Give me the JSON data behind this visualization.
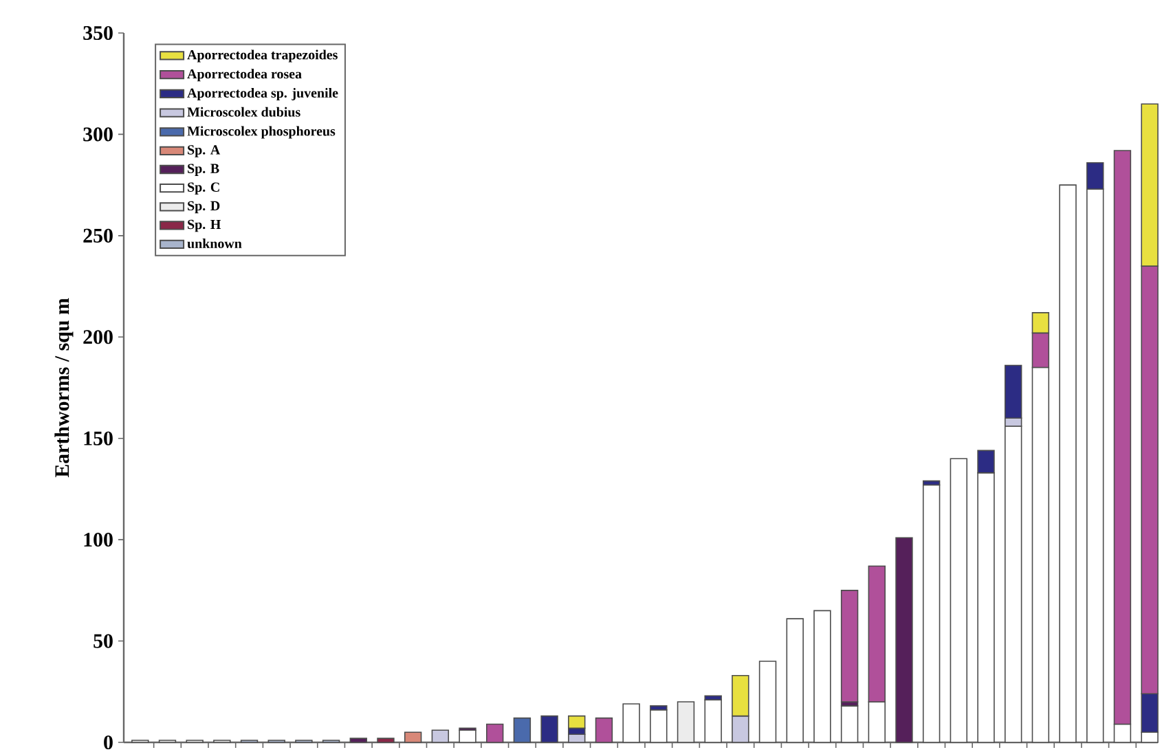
{
  "chart_data": {
    "type": "bar",
    "stacked": true,
    "ylabel": "Earthworms / squ m",
    "categories": [
      null,
      null,
      null,
      null,
      null,
      null,
      null,
      null,
      null,
      null,
      null,
      null,
      null,
      null,
      null,
      null,
      null,
      null,
      null,
      null,
      null,
      null,
      null,
      null,
      null,
      null,
      null,
      null,
      null,
      null,
      null,
      null,
      null,
      null,
      null,
      null,
      null,
      null
    ],
    "ylim": [
      0,
      350
    ],
    "yticks": [
      0,
      50,
      100,
      150,
      200,
      250,
      300,
      350
    ],
    "legend": "top left",
    "series": [
      {
        "name": "unknown",
        "color": "#a8b4cc",
        "values": [
          null,
          null,
          null,
          null,
          1,
          1,
          1,
          1,
          null,
          null,
          null,
          null,
          null,
          null,
          null,
          null,
          null,
          null,
          null,
          null,
          null,
          null,
          null,
          null,
          null,
          null,
          null,
          null,
          null,
          null,
          null,
          null,
          null,
          null,
          null,
          null,
          null,
          null
        ]
      },
      {
        "name": "Sp. H",
        "color": "#8a2848",
        "values": [
          null,
          null,
          null,
          null,
          null,
          null,
          null,
          null,
          null,
          2,
          null,
          null,
          null,
          null,
          null,
          null,
          null,
          null,
          null,
          null,
          null,
          null,
          null,
          null,
          null,
          null,
          null,
          null,
          null,
          null,
          null,
          null,
          null,
          null,
          null,
          null,
          null,
          null
        ]
      },
      {
        "name": "Sp. D",
        "color": "#ececec",
        "values": [
          1,
          1,
          1,
          1,
          null,
          null,
          null,
          null,
          null,
          null,
          null,
          null,
          null,
          null,
          null,
          null,
          null,
          null,
          null,
          null,
          20,
          null,
          null,
          null,
          null,
          null,
          null,
          null,
          null,
          null,
          null,
          null,
          null,
          null,
          null,
          null,
          null,
          null
        ]
      },
      {
        "name": "Sp. C",
        "color": "#ffffff",
        "values": [
          null,
          null,
          null,
          null,
          null,
          null,
          null,
          null,
          null,
          null,
          null,
          null,
          6,
          null,
          null,
          null,
          null,
          null,
          19,
          16,
          null,
          21,
          null,
          40,
          61,
          65,
          18,
          20,
          null,
          127,
          140,
          133,
          156,
          185,
          275,
          273,
          9,
          5
        ]
      },
      {
        "name": "Sp. B",
        "color": "#55205a",
        "values": [
          null,
          null,
          null,
          null,
          null,
          null,
          null,
          null,
          2,
          null,
          null,
          null,
          1,
          null,
          null,
          null,
          null,
          null,
          null,
          null,
          null,
          null,
          null,
          null,
          null,
          null,
          2,
          null,
          101,
          null,
          null,
          null,
          null,
          null,
          null,
          null,
          null,
          null
        ]
      },
      {
        "name": "Sp. A",
        "color": "#d88878",
        "values": [
          null,
          null,
          null,
          null,
          null,
          null,
          null,
          null,
          null,
          null,
          5,
          null,
          null,
          null,
          null,
          null,
          null,
          null,
          null,
          null,
          null,
          null,
          null,
          null,
          null,
          null,
          null,
          null,
          null,
          null,
          null,
          null,
          null,
          null,
          null,
          null,
          null,
          null
        ]
      },
      {
        "name": "Microscolex phosphoreus",
        "color": "#4a6aac",
        "values": [
          null,
          null,
          null,
          null,
          null,
          null,
          null,
          null,
          null,
          null,
          null,
          null,
          null,
          null,
          12,
          null,
          null,
          null,
          null,
          null,
          null,
          null,
          null,
          null,
          null,
          null,
          null,
          null,
          null,
          null,
          null,
          null,
          null,
          null,
          null,
          null,
          null,
          null
        ]
      },
      {
        "name": "Microscolex dubius",
        "color": "#c8c8e0",
        "values": [
          null,
          null,
          null,
          null,
          null,
          null,
          null,
          null,
          null,
          null,
          null,
          6,
          null,
          null,
          null,
          null,
          4,
          null,
          null,
          null,
          null,
          null,
          13,
          null,
          null,
          null,
          null,
          null,
          null,
          null,
          null,
          null,
          4,
          null,
          null,
          null,
          null,
          null
        ]
      },
      {
        "name": "Aporrectodea sp. juvenile",
        "color": "#2c2c84",
        "values": [
          null,
          null,
          null,
          null,
          null,
          null,
          null,
          null,
          null,
          null,
          null,
          null,
          null,
          null,
          null,
          13,
          3,
          null,
          null,
          2,
          null,
          2,
          null,
          null,
          null,
          null,
          null,
          null,
          null,
          2,
          null,
          11,
          26,
          null,
          null,
          13,
          null,
          19
        ]
      },
      {
        "name": "Aporrectodea rosea",
        "color": "#b0509a",
        "values": [
          null,
          null,
          null,
          null,
          null,
          null,
          null,
          null,
          null,
          null,
          null,
          null,
          null,
          9,
          null,
          null,
          null,
          12,
          null,
          null,
          null,
          null,
          null,
          null,
          null,
          null,
          55,
          67,
          null,
          null,
          null,
          null,
          null,
          17,
          null,
          null,
          283,
          211
        ]
      },
      {
        "name": "Aporrectodea trapezoides",
        "color": "#e8e040",
        "values": [
          null,
          null,
          null,
          null,
          null,
          null,
          null,
          null,
          null,
          null,
          null,
          null,
          null,
          null,
          null,
          null,
          6,
          null,
          null,
          null,
          null,
          null,
          20,
          null,
          null,
          null,
          null,
          null,
          null,
          null,
          null,
          null,
          null,
          10,
          null,
          null,
          null,
          80
        ]
      }
    ]
  }
}
